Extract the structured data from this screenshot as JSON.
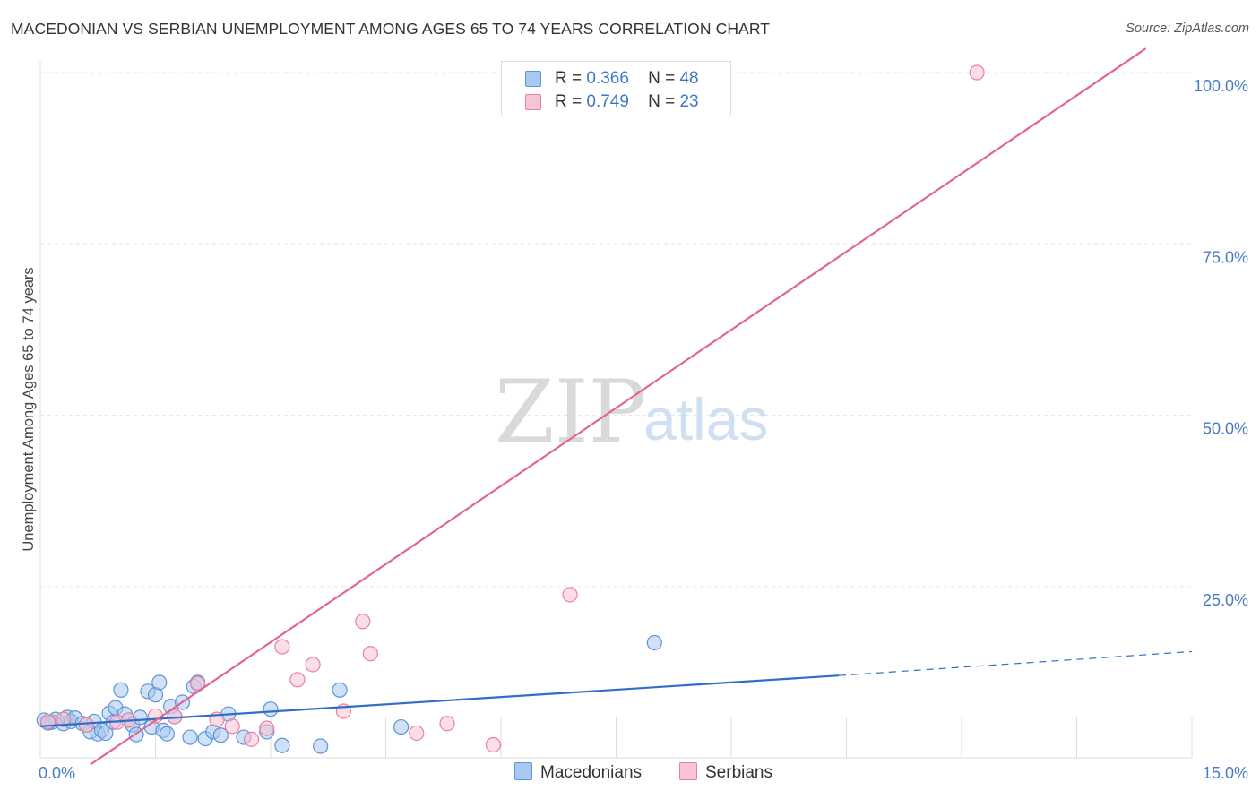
{
  "chart_data": {
    "type": "scatter",
    "title": "MACEDONIAN VS SERBIAN UNEMPLOYMENT AMONG AGES 65 TO 74 YEARS CORRELATION CHART",
    "source": "Source: ZipAtlas.com",
    "xlabel": "",
    "ylabel": "Unemployment Among Ages 65 to 74 years",
    "xlim": [
      0,
      15
    ],
    "ylim": [
      0,
      100
    ],
    "x_ticks": [
      "0.0%",
      "15.0%"
    ],
    "y_ticks": [
      {
        "value": 25,
        "label": "25.0%"
      },
      {
        "value": 50,
        "label": "50.0%"
      },
      {
        "value": 75,
        "label": "75.0%"
      },
      {
        "value": 100,
        "label": "100.0%"
      }
    ],
    "watermark": {
      "zip": "ZIP",
      "atlas": "atlas"
    },
    "legend": {
      "r_label": "R =",
      "n_label": "N =",
      "entries": [
        {
          "name": "Macedonians",
          "r": "0.366",
          "n": "48",
          "color": "#a9c8f0",
          "stroke": "#5b95d8"
        },
        {
          "name": "Serbians",
          "r": "0.749",
          "n": "23",
          "color": "#f8c3d2",
          "stroke": "#e8809f"
        }
      ]
    },
    "series": [
      {
        "name": "Macedonians",
        "color": "#a9c8f0",
        "stroke": "#5b95d8",
        "line_color": "#2f6fc9",
        "trend": {
          "x0": 0.0,
          "y0": 4.6,
          "x1": 10.4,
          "y1": 12.0,
          "dash_to_x": 15.0,
          "dash_to_y": 15.5
        },
        "points": [
          [
            0.05,
            5.5
          ],
          [
            0.15,
            5.2
          ],
          [
            0.2,
            5.6
          ],
          [
            0.3,
            5.0
          ],
          [
            0.35,
            5.9
          ],
          [
            0.4,
            5.3
          ],
          [
            0.45,
            5.8
          ],
          [
            0.55,
            5.0
          ],
          [
            0.6,
            4.8
          ],
          [
            0.65,
            3.8
          ],
          [
            0.7,
            5.3
          ],
          [
            0.75,
            3.5
          ],
          [
            0.8,
            4.0
          ],
          [
            0.85,
            3.6
          ],
          [
            0.9,
            6.5
          ],
          [
            0.95,
            5.2
          ],
          [
            0.98,
            7.3
          ],
          [
            1.05,
            9.9
          ],
          [
            1.1,
            6.4
          ],
          [
            1.15,
            5.5
          ],
          [
            1.2,
            4.8
          ],
          [
            1.25,
            3.4
          ],
          [
            1.3,
            5.9
          ],
          [
            1.4,
            9.7
          ],
          [
            1.45,
            4.5
          ],
          [
            1.5,
            9.2
          ],
          [
            1.55,
            11.0
          ],
          [
            1.6,
            4.0
          ],
          [
            1.65,
            3.5
          ],
          [
            1.7,
            7.5
          ],
          [
            1.75,
            6.0
          ],
          [
            1.85,
            8.1
          ],
          [
            1.95,
            3.0
          ],
          [
            2.0,
            10.4
          ],
          [
            2.05,
            11.0
          ],
          [
            2.15,
            2.8
          ],
          [
            2.25,
            3.8
          ],
          [
            2.35,
            3.3
          ],
          [
            2.45,
            6.4
          ],
          [
            2.65,
            3.0
          ],
          [
            2.95,
            3.8
          ],
          [
            3.0,
            7.1
          ],
          [
            3.15,
            1.8
          ],
          [
            3.65,
            1.7
          ],
          [
            3.9,
            9.9
          ],
          [
            4.7,
            4.5
          ],
          [
            8.0,
            16.8
          ],
          [
            0.1,
            5.1
          ]
        ]
      },
      {
        "name": "Serbians",
        "color": "#f8c3d2",
        "stroke": "#e8809f",
        "line_color": "#e26591",
        "trend": {
          "x0": 0.65,
          "y0": -1.0,
          "x1": 14.4,
          "y1": 103.5
        },
        "points": [
          [
            0.1,
            5.3
          ],
          [
            0.3,
            5.6
          ],
          [
            0.6,
            4.8
          ],
          [
            1.0,
            5.2
          ],
          [
            1.15,
            5.5
          ],
          [
            1.5,
            6.1
          ],
          [
            1.75,
            6.0
          ],
          [
            2.05,
            10.8
          ],
          [
            2.3,
            5.6
          ],
          [
            2.5,
            4.6
          ],
          [
            2.75,
            2.7
          ],
          [
            2.95,
            4.3
          ],
          [
            3.15,
            16.2
          ],
          [
            3.35,
            11.4
          ],
          [
            3.55,
            13.6
          ],
          [
            3.95,
            6.8
          ],
          [
            4.2,
            19.9
          ],
          [
            4.3,
            15.2
          ],
          [
            4.9,
            3.6
          ],
          [
            5.3,
            5.0
          ],
          [
            5.9,
            1.9
          ],
          [
            6.9,
            23.8
          ],
          [
            12.2,
            100.0
          ]
        ]
      }
    ]
  }
}
